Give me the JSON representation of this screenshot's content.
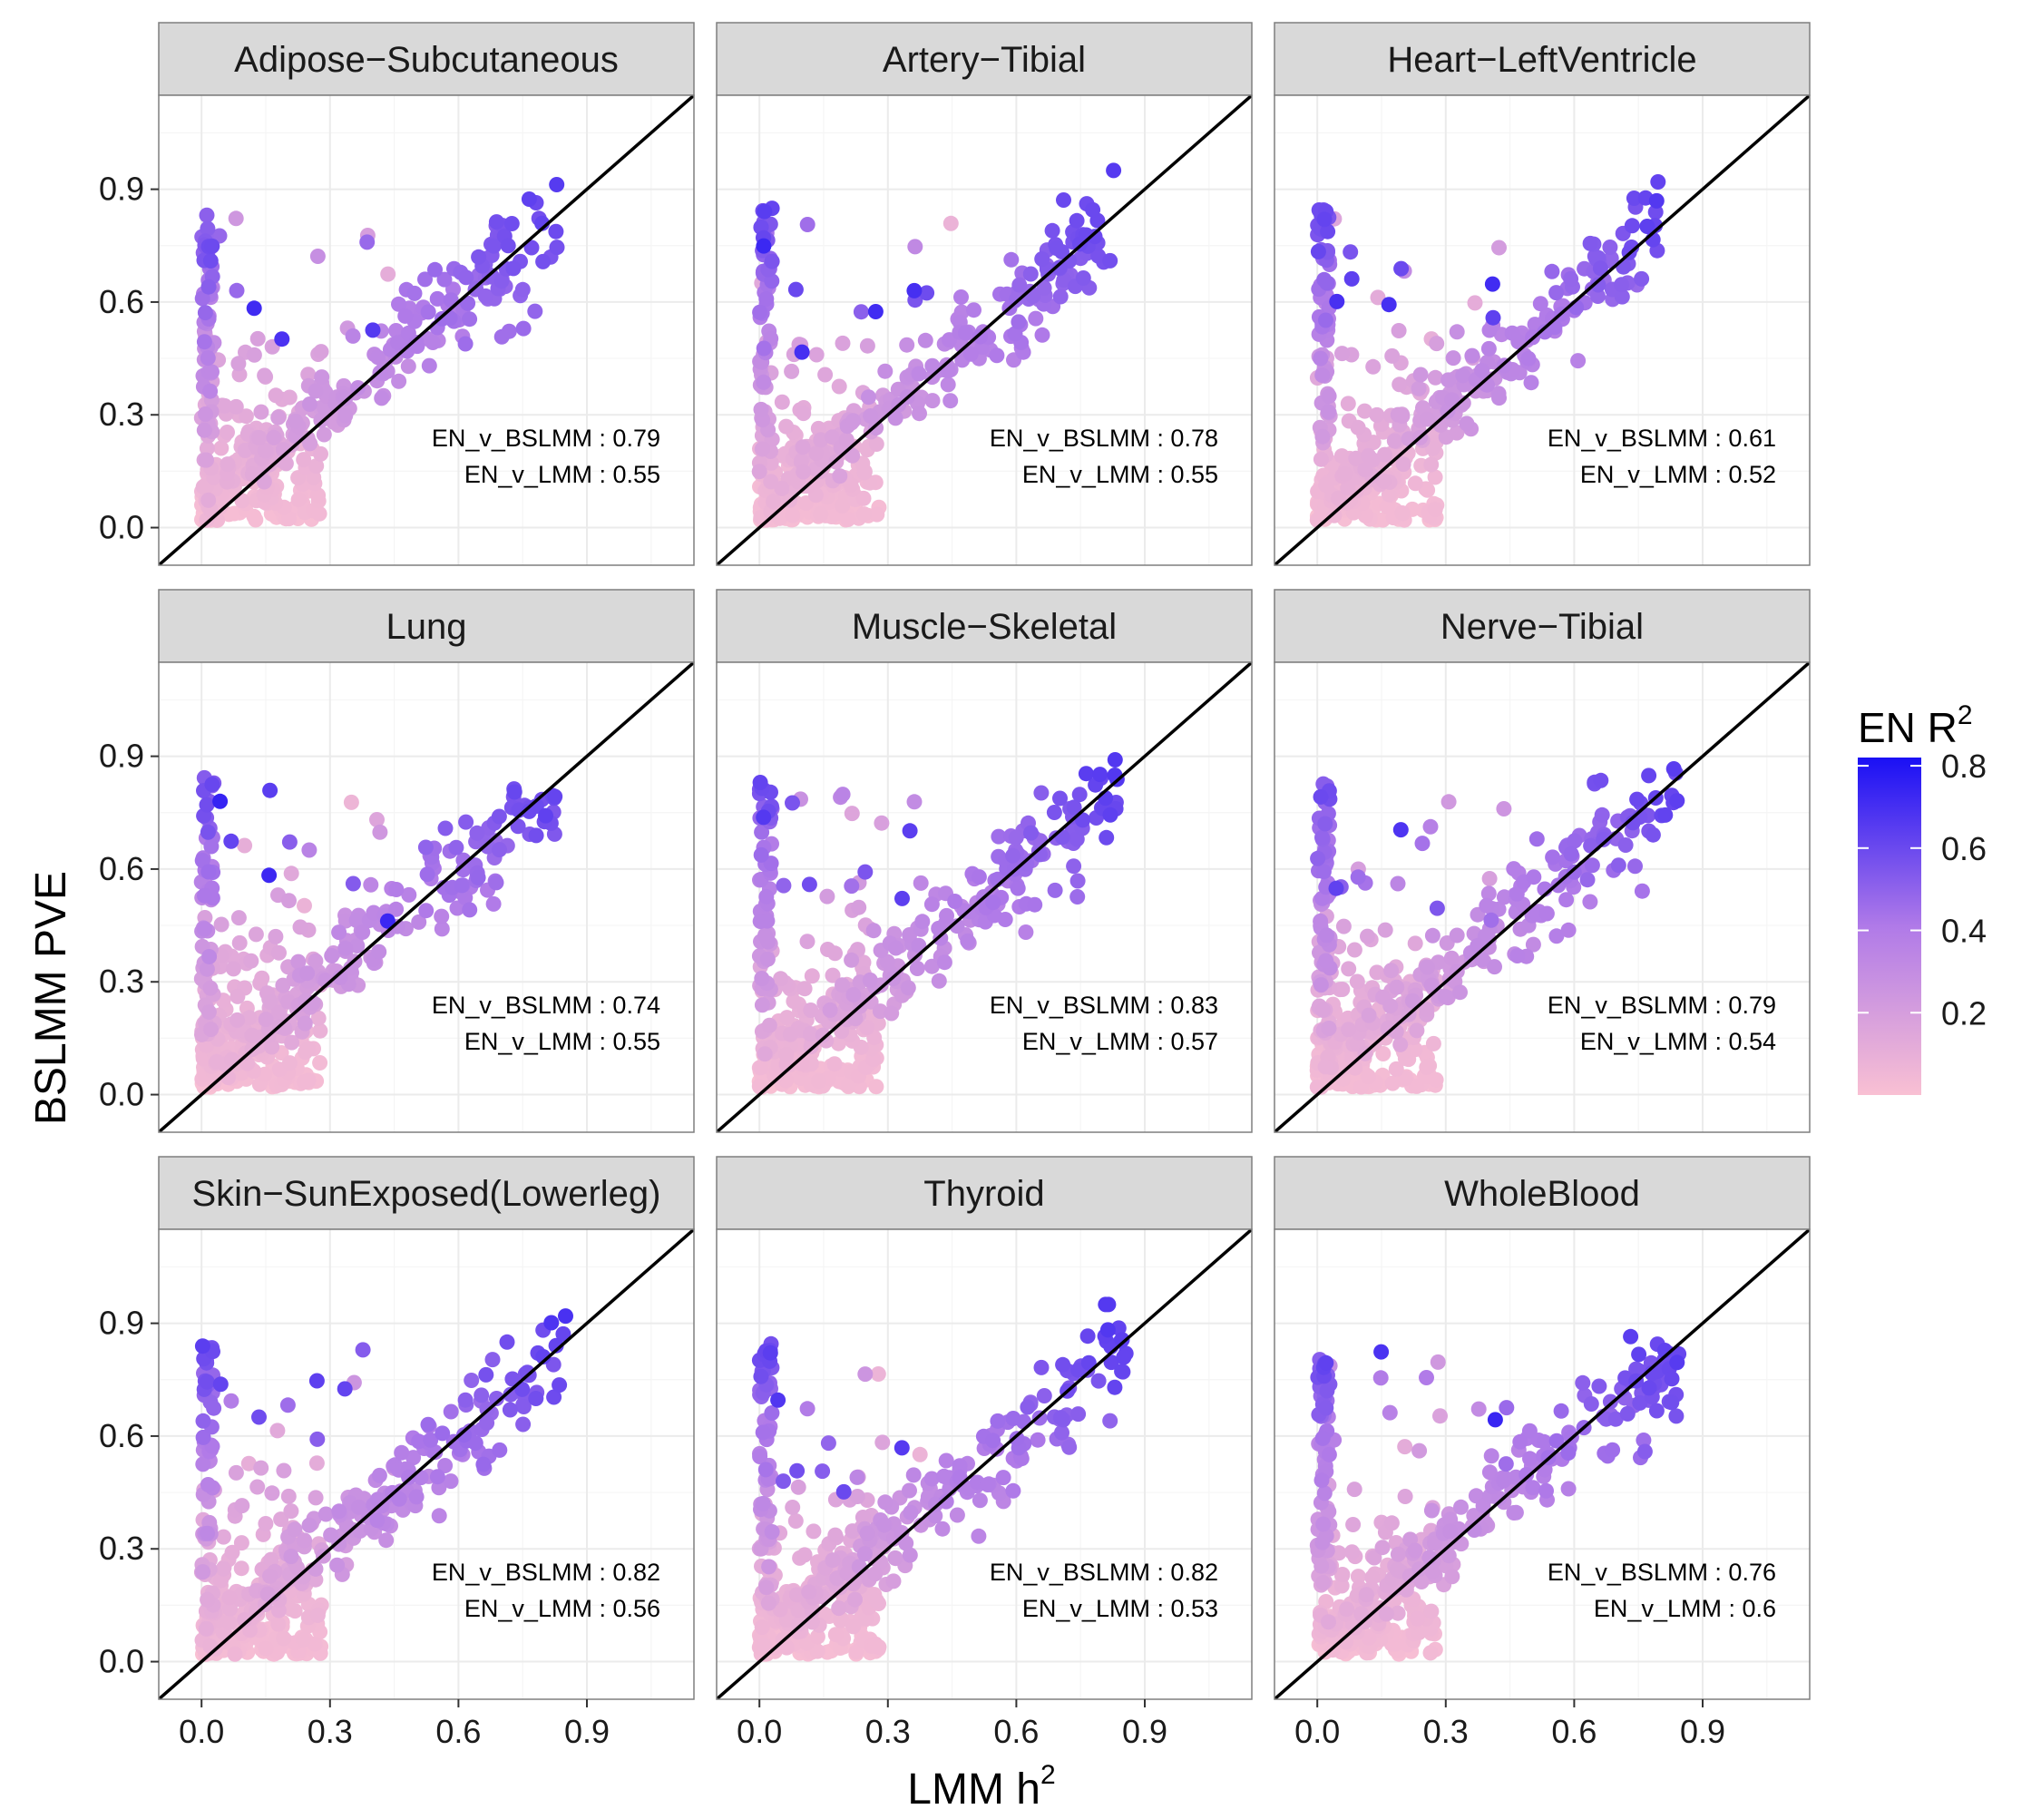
{
  "chart_data": {
    "type": "scatter",
    "xlabel": "LMM h",
    "xlabel_sup": "2",
    "ylabel": "BSLMM PVE",
    "xlim": [
      -0.1,
      1.15
    ],
    "ylim": [
      -0.1,
      1.15
    ],
    "x_ticks": [
      "0.0",
      "0.3",
      "0.6",
      "0.9"
    ],
    "y_ticks": [
      "0.0",
      "0.3",
      "0.6",
      "0.9"
    ],
    "x_tick_values": [
      0.0,
      0.3,
      0.6,
      0.9
    ],
    "y_tick_values": [
      0.0,
      0.3,
      0.6,
      0.9
    ],
    "grid": true,
    "reference_line": "y = x",
    "color_legend": {
      "title": "EN R",
      "title_sup": "2",
      "ticks": [
        "0.8",
        "0.6",
        "0.4",
        "0.2"
      ],
      "tick_values": [
        0.8,
        0.6,
        0.4,
        0.2
      ],
      "range": [
        0.0,
        0.82
      ],
      "low_color": "#f9c0d3",
      "mid_color": "#b07ae8",
      "high_color": "#1a10f5",
      "position": "right"
    },
    "facets": [
      {
        "tissue": "Adipose−Subcutaneous",
        "lines": [
          "EN_v_BSLMM : 0.79",
          "EN_v_LMM : 0.55"
        ],
        "r_bslmm": 0.79,
        "r_lmm": 0.55
      },
      {
        "tissue": "Artery−Tibial",
        "lines": [
          "EN_v_BSLMM : 0.78",
          "EN_v_LMM : 0.55"
        ],
        "r_bslmm": 0.78,
        "r_lmm": 0.55
      },
      {
        "tissue": "Heart−LeftVentricle",
        "lines": [
          "EN_v_BSLMM : 0.61",
          "EN_v_LMM : 0.52"
        ],
        "r_bslmm": 0.61,
        "r_lmm": 0.52
      },
      {
        "tissue": "Lung",
        "lines": [
          "EN_v_BSLMM : 0.74",
          "EN_v_LMM : 0.55"
        ],
        "r_bslmm": 0.74,
        "r_lmm": 0.55
      },
      {
        "tissue": "Muscle−Skeletal",
        "lines": [
          "EN_v_BSLMM : 0.83",
          "EN_v_LMM : 0.57"
        ],
        "r_bslmm": 0.83,
        "r_lmm": 0.57
      },
      {
        "tissue": "Nerve−Tibial",
        "lines": [
          "EN_v_BSLMM : 0.79",
          "EN_v_LMM : 0.54"
        ],
        "r_bslmm": 0.79,
        "r_lmm": 0.54
      },
      {
        "tissue": "Skin−SunExposed(Lowerleg)",
        "lines": [
          "EN_v_BSLMM : 0.82",
          "EN_v_LMM : 0.56"
        ],
        "r_bslmm": 0.82,
        "r_lmm": 0.56
      },
      {
        "tissue": "Thyroid",
        "lines": [
          "EN_v_BSLMM : 0.82",
          "EN_v_LMM : 0.53"
        ],
        "r_bslmm": 0.82,
        "r_lmm": 0.53
      },
      {
        "tissue": "WholeBlood",
        "lines": [
          "EN_v_BSLMM : 0.76",
          "EN_v_LMM : 0.6"
        ],
        "r_bslmm": 0.76,
        "r_lmm": 0.6
      }
    ]
  },
  "colors": {
    "strip_fill": "#d9d9d9",
    "panel_border": "#7f7f7f",
    "grid_major": "#ebebeb",
    "grid_minor": "#f5f5f5",
    "ref_line": "#000000"
  }
}
